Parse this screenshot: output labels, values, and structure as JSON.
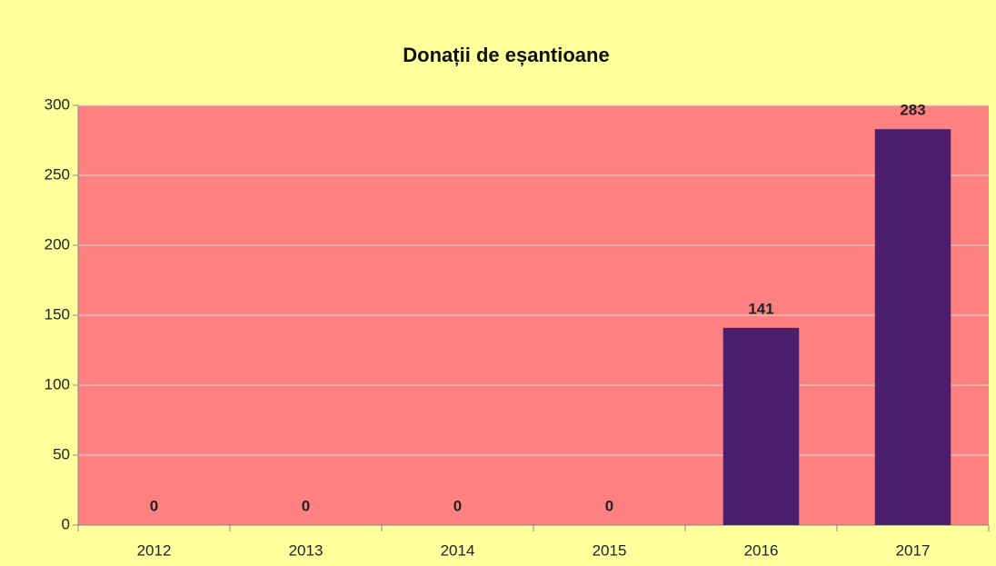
{
  "chart_data": {
    "type": "bar",
    "title": "Donații de eșantioane",
    "categories": [
      "2012",
      "2013",
      "2014",
      "2015",
      "2016",
      "2017"
    ],
    "values": [
      0,
      0,
      0,
      0,
      141,
      283
    ],
    "color": "#4b1f6e",
    "plot_background": "#ff8080",
    "background": "#ffff9c",
    "ylim": [
      0,
      300
    ],
    "yticks": [
      0,
      50,
      100,
      150,
      200,
      250,
      300
    ],
    "grid": true
  }
}
